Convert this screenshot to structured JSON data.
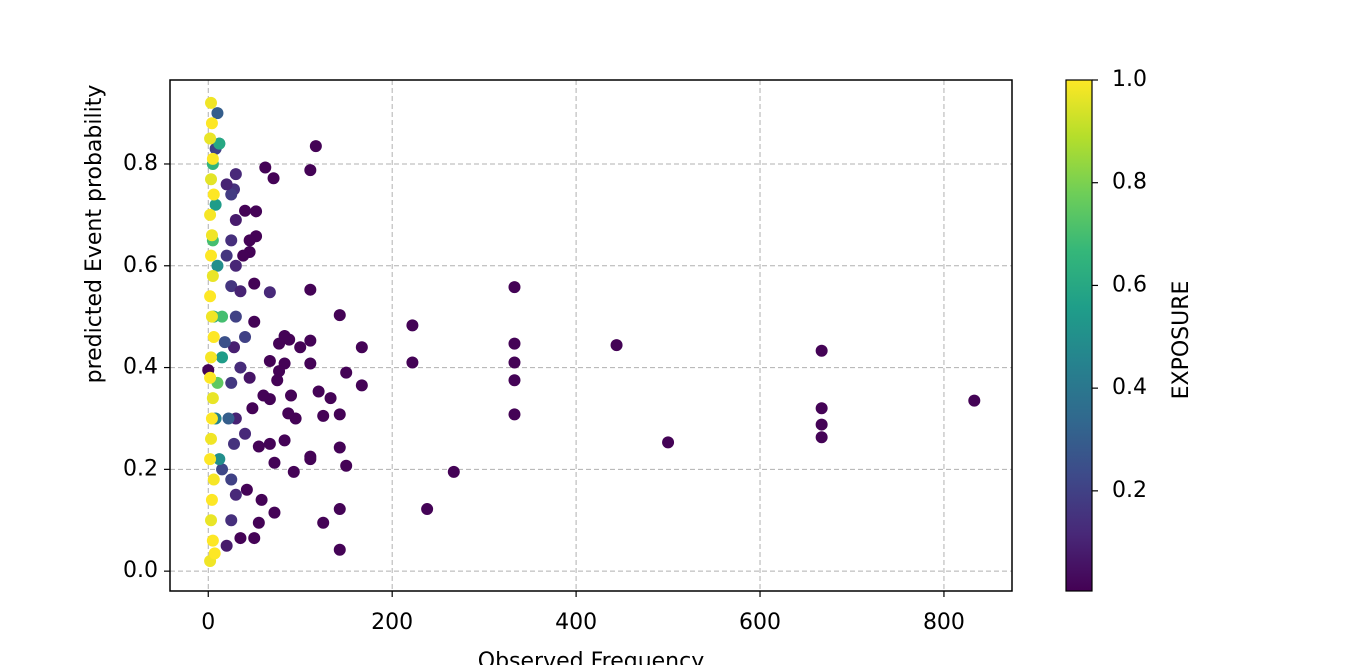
{
  "chart_data": {
    "type": "scatter",
    "x_label": "Observed Frequency",
    "y_label": "predicted Event probability",
    "colorbar_label": "EXPOSURE",
    "colormap": "viridis",
    "grid": true,
    "xlim": [
      -41.6,
      874
    ],
    "ylim": [
      -0.039,
      0.965
    ],
    "clim": [
      0.005,
      1.0
    ],
    "xticks": [
      0,
      200,
      400,
      600,
      800
    ],
    "yticks": [
      {
        "value": 0,
        "label": "0.0"
      },
      0.2,
      0.4,
      0.6,
      0.8
    ],
    "cticks": [
      0.2,
      0.4,
      0.6,
      0.8,
      {
        "value": 1,
        "label": "1.0"
      }
    ],
    "x": [
      833,
      667,
      667,
      667,
      667,
      500,
      444,
      333,
      333,
      333,
      333,
      333,
      267,
      238,
      222,
      222,
      167,
      167,
      150,
      150,
      143,
      143,
      143,
      143,
      143,
      125,
      133,
      125,
      120,
      117,
      111,
      111,
      111,
      111,
      111,
      111,
      100,
      95,
      90,
      88,
      83,
      83,
      83,
      87,
      93,
      77,
      77,
      72,
      71,
      67,
      67,
      67,
      67,
      62,
      60,
      58,
      55,
      55,
      52,
      52,
      50,
      50,
      48,
      45,
      45,
      42,
      40,
      38,
      35,
      50,
      72,
      75,
      0,
      30,
      28,
      25,
      20,
      30,
      25,
      30,
      25,
      30,
      28,
      35,
      25,
      30,
      28,
      25,
      30,
      25,
      20,
      35,
      40,
      45,
      40,
      20,
      22,
      18,
      15,
      12,
      10,
      8,
      12,
      8,
      5,
      10,
      15,
      10,
      8,
      12,
      5,
      6,
      15,
      3,
      4,
      2,
      5,
      3,
      6,
      2,
      4,
      3,
      5,
      2,
      4,
      6,
      3,
      2,
      5,
      4,
      3,
      2,
      6,
      4,
      3,
      5,
      2,
      7
    ],
    "y": [
      0.335,
      0.433,
      0.32,
      0.288,
      0.263,
      0.253,
      0.444,
      0.558,
      0.447,
      0.41,
      0.375,
      0.308,
      0.195,
      0.122,
      0.483,
      0.41,
      0.44,
      0.365,
      0.39,
      0.207,
      0.503,
      0.308,
      0.243,
      0.122,
      0.042,
      0.095,
      0.34,
      0.305,
      0.353,
      0.835,
      0.788,
      0.553,
      0.453,
      0.408,
      0.225,
      0.22,
      0.44,
      0.3,
      0.345,
      0.455,
      0.462,
      0.408,
      0.257,
      0.31,
      0.195,
      0.447,
      0.393,
      0.213,
      0.772,
      0.548,
      0.413,
      0.338,
      0.25,
      0.793,
      0.345,
      0.14,
      0.095,
      0.245,
      0.658,
      0.707,
      0.565,
      0.49,
      0.32,
      0.627,
      0.65,
      0.16,
      0.708,
      0.62,
      0.065,
      0.065,
      0.115,
      0.375,
      0.395,
      0.78,
      0.75,
      0.74,
      0.76,
      0.69,
      0.65,
      0.6,
      0.56,
      0.5,
      0.44,
      0.4,
      0.37,
      0.3,
      0.25,
      0.18,
      0.15,
      0.1,
      0.05,
      0.55,
      0.46,
      0.38,
      0.27,
      0.62,
      0.3,
      0.45,
      0.2,
      0.84,
      0.9,
      0.83,
      0.84,
      0.72,
      0.65,
      0.6,
      0.42,
      0.37,
      0.3,
      0.22,
      0.8,
      0.5,
      0.5,
      0.92,
      0.88,
      0.85,
      0.81,
      0.77,
      0.74,
      0.7,
      0.66,
      0.62,
      0.58,
      0.54,
      0.5,
      0.46,
      0.42,
      0.38,
      0.34,
      0.3,
      0.26,
      0.22,
      0.18,
      0.14,
      0.1,
      0.06,
      0.02,
      0.035
    ],
    "c": [
      0.01,
      0.01,
      0.01,
      0.01,
      0.01,
      0.01,
      0.01,
      0.01,
      0.01,
      0.01,
      0.01,
      0.01,
      0.01,
      0.01,
      0.01,
      0.01,
      0.01,
      0.01,
      0.01,
      0.01,
      0.01,
      0.01,
      0.01,
      0.01,
      0.01,
      0.01,
      0.01,
      0.01,
      0.01,
      0.01,
      0.01,
      0.01,
      0.01,
      0.01,
      0.01,
      0.01,
      0.01,
      0.01,
      0.01,
      0.01,
      0.01,
      0.01,
      0.01,
      0.01,
      0.01,
      0.01,
      0.01,
      0.01,
      0.01,
      0.12,
      0.01,
      0.01,
      0.01,
      0.01,
      0.01,
      0.01,
      0.01,
      0.01,
      0.01,
      0.01,
      0.01,
      0.01,
      0.01,
      0.01,
      0.01,
      0.01,
      0.01,
      0.01,
      0.01,
      0.01,
      0.01,
      0.01,
      0.01,
      0.12,
      0.15,
      0.18,
      0.1,
      0.08,
      0.14,
      0.11,
      0.16,
      0.2,
      0.09,
      0.13,
      0.17,
      0.1,
      0.15,
      0.2,
      0.12,
      0.14,
      0.08,
      0.1,
      0.2,
      0.06,
      0.12,
      0.16,
      0.3,
      0.25,
      0.22,
      0.4,
      0.3,
      0.2,
      0.6,
      0.55,
      0.7,
      0.5,
      0.55,
      0.75,
      0.45,
      0.5,
      0.65,
      0.6,
      0.7,
      0.98,
      1,
      0.97,
      1,
      0.96,
      1,
      0.99,
      0.98,
      1,
      0.97,
      1,
      0.98,
      1,
      0.99,
      1,
      0.97,
      1,
      0.98,
      1,
      0.99,
      1,
      0.97,
      1,
      0.98,
      1
    ]
  }
}
